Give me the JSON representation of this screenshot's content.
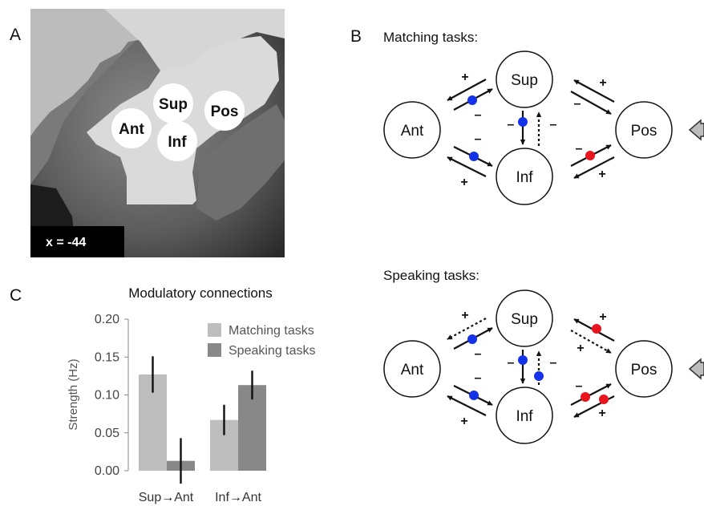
{
  "panels": {
    "a_label": "A",
    "b_label": "B",
    "c_label": "C"
  },
  "brain": {
    "coordinate": "x = -44",
    "regions": [
      "Sup",
      "Pos",
      "Ant",
      "Inf"
    ]
  },
  "networks": {
    "matching_title": "Matching tasks:",
    "speaking_title": "Speaking tasks:",
    "nodes": [
      "Sup",
      "Ant",
      "Pos",
      "Inf"
    ],
    "plus": "+",
    "minus": "–",
    "modulator_colors": {
      "blue": "#1432e8",
      "red": "#e8141e"
    }
  },
  "chart_data": {
    "type": "bar",
    "title": "Modulatory connections",
    "ylabel": "Strength (Hz)",
    "xlabel": "",
    "ylim": [
      0,
      0.2
    ],
    "yticks": [
      "0.20",
      "0.15",
      "0.10",
      "0.05",
      "0.00"
    ],
    "categories": [
      "Sup→Ant",
      "Inf→Ant"
    ],
    "category_labels": [
      {
        "from": "Sup",
        "arrow": "→",
        "to": "Ant"
      },
      {
        "from": "Inf",
        "arrow": "→",
        "to": "Ant"
      }
    ],
    "legend_position": "top-right",
    "grid": false,
    "series": [
      {
        "name": "Matching tasks",
        "color": "#bdbdbd",
        "values": [
          0.127,
          0.067
        ],
        "error_low": [
          0.103,
          0.047
        ],
        "error_high": [
          0.151,
          0.087
        ]
      },
      {
        "name": "Speaking tasks",
        "color": "#888888",
        "values": [
          0.013,
          0.113
        ],
        "error_low": [
          -0.017,
          0.094
        ],
        "error_high": [
          0.043,
          0.132
        ]
      }
    ]
  }
}
